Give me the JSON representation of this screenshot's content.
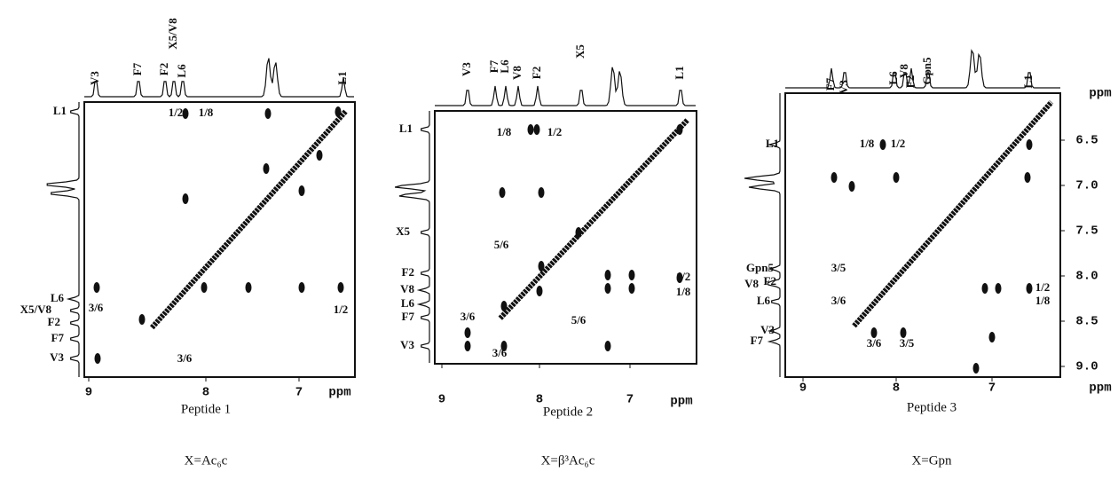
{
  "panels": [
    {
      "top_labels": [
        "V3",
        "F7",
        "F2",
        "X5/V8",
        "L6",
        "L1"
      ],
      "left_labels": [
        "L1",
        "L6",
        "X5/V8",
        "F2",
        "F7",
        "V3"
      ],
      "cross_labels": [
        "1/2",
        "1/8",
        "3/6",
        "1/2",
        "3/6"
      ],
      "x_ticks": [
        "9",
        "8",
        "7"
      ],
      "unit": "ppm",
      "caption": "Peptide 1",
      "subcaption": "X=Ac₆c"
    },
    {
      "top_labels": [
        "V3",
        "F7",
        "L6",
        "V8",
        "F2",
        "X5",
        "L1"
      ],
      "left_labels": [
        "L1",
        "X5",
        "F2",
        "V8",
        "L6",
        "F7",
        "V3"
      ],
      "cross_labels": [
        "1/8",
        "1/2",
        "5/6",
        "1/2",
        "1/8",
        "3/6",
        "5/6",
        "3/6"
      ],
      "x_ticks": [
        "9",
        "8",
        "7"
      ],
      "unit": "ppm",
      "caption": "Peptide 2",
      "subcaption": "X=β³Ac₆c"
    },
    {
      "top_labels": [
        "F7",
        "V3",
        "L6",
        "V8",
        "F2",
        "Gpn5",
        "L1"
      ],
      "left_labels": [
        "L1",
        "Gpn5",
        "V8",
        "F2",
        "L6",
        "V3",
        "F7"
      ],
      "cross_labels": [
        "1/8",
        "1/2",
        "3/5",
        "3/6",
        "1/2",
        "1/8",
        "3/6",
        "3/5"
      ],
      "x_ticks": [
        "9",
        "8",
        "7"
      ],
      "y_ticks": [
        "6.5",
        "7.0",
        "7.5",
        "8.0",
        "8.5",
        "9.0"
      ],
      "unit": "ppm",
      "caption": "Peptide 3",
      "subcaption": "X=Gpn"
    }
  ]
}
